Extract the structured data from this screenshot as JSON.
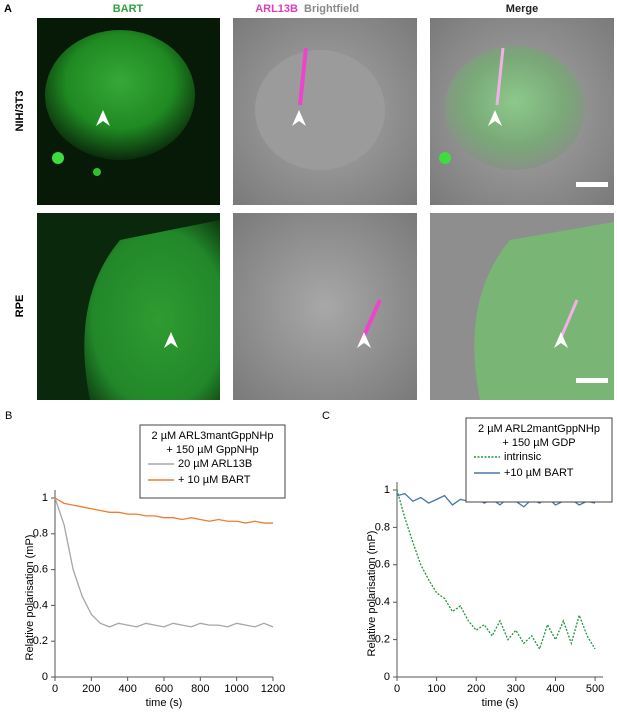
{
  "panel_a": {
    "label": "A",
    "columns": [
      "BART",
      "ARL13B",
      "Brightfield",
      "Merge"
    ],
    "rows": [
      "NIH/3T3",
      "RPE"
    ]
  },
  "chart_data": [
    {
      "type": "line",
      "label": "B",
      "legend_title": [
        "2 µM ARL3mantGppNHp",
        "+ 150 µM GppNHp"
      ],
      "x_label": "time (s)",
      "y_label": "Relative polarisation (mP)",
      "x": [
        0,
        50,
        100,
        150,
        200,
        250,
        300,
        350,
        400,
        450,
        500,
        550,
        600,
        650,
        700,
        750,
        800,
        850,
        900,
        950,
        1000,
        1050,
        1100,
        1150,
        1200
      ],
      "series": [
        {
          "name": "20 µM ARL13B",
          "color": "#a6a6a6",
          "style": "solid",
          "values": [
            1,
            0.85,
            0.6,
            0.45,
            0.35,
            0.3,
            0.28,
            0.3,
            0.29,
            0.28,
            0.3,
            0.29,
            0.28,
            0.3,
            0.29,
            0.28,
            0.3,
            0.29,
            0.29,
            0.28,
            0.3,
            0.29,
            0.28,
            0.3,
            0.28
          ]
        },
        {
          "name": "+ 10 µM BART",
          "color": "#ed7d31",
          "style": "solid",
          "values": [
            1,
            0.97,
            0.96,
            0.95,
            0.94,
            0.93,
            0.92,
            0.92,
            0.91,
            0.91,
            0.9,
            0.9,
            0.89,
            0.89,
            0.88,
            0.89,
            0.88,
            0.87,
            0.88,
            0.87,
            0.87,
            0.86,
            0.87,
            0.86,
            0.86
          ]
        }
      ],
      "xlim": [
        0,
        1200
      ],
      "xticks": [
        0,
        200,
        400,
        600,
        800,
        1000,
        1200
      ],
      "ylim": [
        0,
        1
      ],
      "yticks": [
        0,
        0.2,
        0.4,
        0.6,
        0.8,
        1
      ]
    },
    {
      "type": "line",
      "label": "C",
      "legend_title": [
        "2 µM ARL2mantGppNHp",
        "+ 150 µM GDP"
      ],
      "x_label": "time  (s)",
      "y_label": "Relative polarisation (mP)",
      "x": [
        0,
        20,
        40,
        60,
        80,
        100,
        120,
        140,
        160,
        180,
        200,
        220,
        240,
        260,
        280,
        300,
        320,
        340,
        360,
        380,
        400,
        420,
        440,
        460,
        480,
        500
      ],
      "series": [
        {
          "name": "intrinsic",
          "color": "#1e9640",
          "style": "dashed",
          "values": [
            1,
            0.85,
            0.72,
            0.6,
            0.52,
            0.45,
            0.42,
            0.35,
            0.38,
            0.3,
            0.25,
            0.28,
            0.22,
            0.3,
            0.2,
            0.25,
            0.18,
            0.22,
            0.15,
            0.28,
            0.2,
            0.3,
            0.18,
            0.33,
            0.22,
            0.15
          ]
        },
        {
          "name": "+10 µM BART",
          "color": "#4a76b0",
          "style": "solid",
          "values": [
            0.97,
            0.98,
            0.94,
            0.96,
            0.93,
            0.95,
            0.97,
            0.92,
            0.95,
            0.94,
            0.96,
            0.93,
            0.95,
            0.92,
            0.96,
            0.94,
            0.91,
            0.95,
            0.93,
            0.96,
            0.92,
            0.94,
            0.95,
            0.92,
            0.94,
            0.93
          ]
        }
      ],
      "xlim": [
        0,
        520
      ],
      "xticks": [
        0,
        100,
        200,
        300,
        400,
        500
      ],
      "ylim": [
        0,
        1
      ],
      "yticks": [
        0,
        0.2,
        0.4,
        0.6,
        0.8,
        1
      ]
    }
  ]
}
